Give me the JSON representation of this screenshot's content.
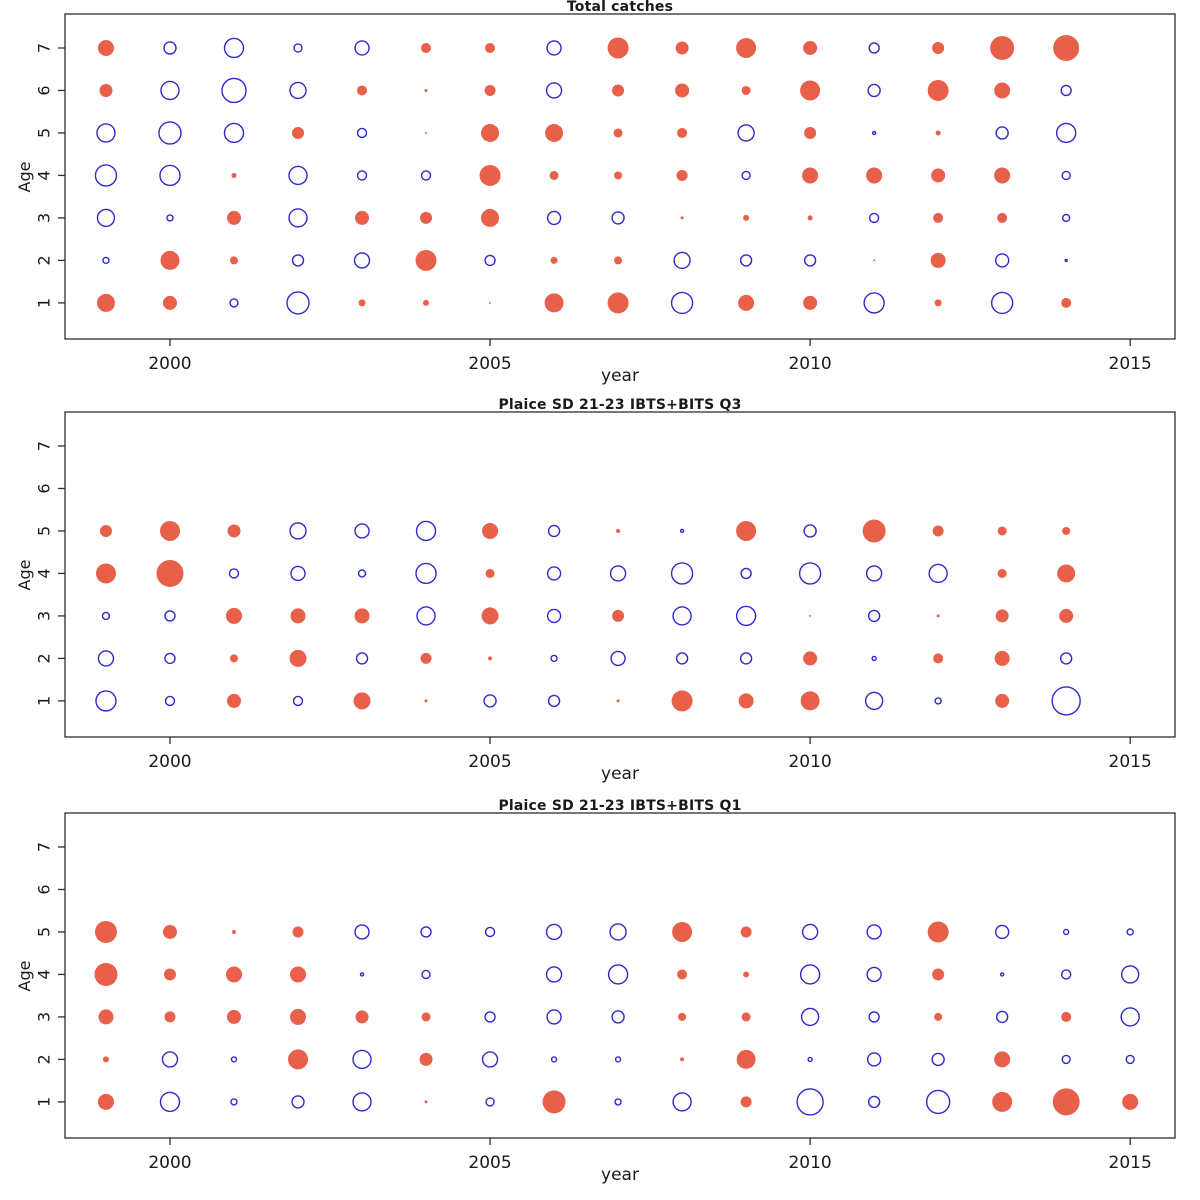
{
  "figure": {
    "background": "#ffffff",
    "axis_color": "#2e2e2e",
    "encoding_note": "bubble radius = magnitude; filled red = positive value, open blue circle = negative value"
  },
  "chart_data": [
    {
      "type": "bubble",
      "title": "Total catches",
      "xlabel": "year",
      "ylabel": "Age",
      "x_ticks": [
        2000,
        2005,
        2010,
        2015
      ],
      "y_ticks": [
        1,
        2,
        3,
        4,
        5,
        6,
        7
      ],
      "x_range": [
        1998.36,
        2015.7
      ],
      "y_range": [
        0.15,
        7.8
      ],
      "grid": false,
      "legend_position": "none",
      "colors": {
        "positive_fill": "#e8604a",
        "negative_stroke": "#2b2bcd"
      },
      "years": [
        1999,
        2000,
        2001,
        2002,
        2003,
        2004,
        2005,
        2006,
        2007,
        2008,
        2009,
        2010,
        2011,
        2012,
        2013,
        2014
      ],
      "series": [
        {
          "age": 7,
          "values": [
            8,
            -6,
            -9.5,
            -4,
            -7,
            5,
            5,
            -7,
            10.5,
            6.5,
            10,
            7,
            -5,
            6,
            12,
            13
          ]
        },
        {
          "age": 6,
          "values": [
            6.5,
            -9,
            -12,
            -8,
            5,
            1.5,
            5.5,
            -7.5,
            6,
            7,
            4.5,
            10,
            -6,
            10.5,
            8,
            -5
          ]
        },
        {
          "age": 5,
          "values": [
            -9,
            -11,
            -9.5,
            6,
            -4.5,
            1,
            9,
            9,
            4.5,
            5,
            -8,
            6,
            -1.5,
            2.5,
            -6,
            -9.5
          ]
        },
        {
          "age": 4,
          "values": [
            -10.5,
            -10,
            2.5,
            -9,
            -4.5,
            -4.5,
            10.5,
            4.5,
            4,
            5.5,
            -4,
            8,
            8,
            7,
            8,
            -4
          ]
        },
        {
          "age": 3,
          "values": [
            -8.5,
            -3,
            7,
            -9,
            7,
            6,
            9,
            -6.5,
            -6,
            1.5,
            3,
            2.5,
            -4.5,
            5,
            5,
            -3.5
          ]
        },
        {
          "age": 2,
          "values": [
            -3,
            9.5,
            4,
            -5.5,
            -7.5,
            10.5,
            -5,
            3.5,
            4,
            -8,
            -5.5,
            -5.5,
            1,
            7.5,
            -6.5,
            -1
          ]
        },
        {
          "age": 1,
          "values": [
            9,
            7,
            -4,
            -11,
            3.5,
            3,
            1,
            9.5,
            10.5,
            -10.5,
            8,
            7,
            -10,
            3.5,
            -10.5,
            5
          ]
        }
      ]
    },
    {
      "type": "bubble",
      "title": "Plaice SD 21-23 IBTS+BITS Q3",
      "xlabel": "year",
      "ylabel": "Age",
      "x_ticks": [
        2000,
        2005,
        2010,
        2015
      ],
      "y_ticks": [
        1,
        2,
        3,
        4,
        5,
        6,
        7
      ],
      "x_range": [
        1998.36,
        2015.7
      ],
      "y_range": [
        0.15,
        7.8
      ],
      "grid": false,
      "legend_position": "none",
      "colors": {
        "positive_fill": "#e8604a",
        "negative_stroke": "#2b2bcd"
      },
      "years": [
        1999,
        2000,
        2001,
        2002,
        2003,
        2004,
        2005,
        2006,
        2007,
        2008,
        2009,
        2010,
        2011,
        2012,
        2013,
        2014
      ],
      "series": [
        {
          "age": 5,
          "values": [
            6,
            10,
            6.5,
            -8,
            -7,
            -9.5,
            8,
            -5.5,
            2,
            -1.5,
            10,
            -6,
            11.5,
            5.5,
            4.5,
            4
          ]
        },
        {
          "age": 4,
          "values": [
            10,
            13.5,
            -4.5,
            -7,
            -3.5,
            -10,
            4.5,
            -6.5,
            -7.5,
            -10.5,
            -5,
            -10.5,
            -7.5,
            -9,
            4.5,
            9
          ]
        },
        {
          "age": 3,
          "values": [
            -3.5,
            -5,
            8,
            7.5,
            7.5,
            -9,
            8.5,
            -6.5,
            6,
            -9,
            -9.5,
            1,
            -5.5,
            1.5,
            6.5,
            7
          ]
        },
        {
          "age": 2,
          "values": [
            -7.5,
            -5,
            4,
            8.5,
            -5.5,
            5.5,
            2,
            -3,
            -7,
            -5.5,
            -5.5,
            7,
            -2,
            5,
            7.5,
            -5.5
          ]
        },
        {
          "age": 1,
          "values": [
            -10,
            -4.5,
            7,
            -4.5,
            8.5,
            1.5,
            -6,
            -5.5,
            1.5,
            10.5,
            7.5,
            9.5,
            -8.5,
            -3,
            7,
            -14
          ]
        }
      ]
    },
    {
      "type": "bubble",
      "title": "Plaice SD 21-23 IBTS+BITS Q1",
      "xlabel": "year",
      "ylabel": "Age",
      "x_ticks": [
        2000,
        2005,
        2010,
        2015
      ],
      "y_ticks": [
        1,
        2,
        3,
        4,
        5,
        6,
        7
      ],
      "x_range": [
        1998.36,
        2015.7
      ],
      "y_range": [
        0.15,
        7.8
      ],
      "grid": false,
      "legend_position": "none",
      "colors": {
        "positive_fill": "#e8604a",
        "negative_stroke": "#2b2bcd"
      },
      "years": [
        1999,
        2000,
        2001,
        2002,
        2003,
        2004,
        2005,
        2006,
        2007,
        2008,
        2009,
        2010,
        2011,
        2012,
        2013,
        2014,
        2015
      ],
      "series": [
        {
          "age": 5,
          "values": [
            11,
            7,
            2,
            5.5,
            -7,
            -5,
            -4.5,
            -7.5,
            -8,
            10,
            5.5,
            -7.5,
            -7,
            10.5,
            -6.5,
            -2.5,
            -3
          ]
        },
        {
          "age": 4,
          "values": [
            11.5,
            6,
            8,
            8,
            -1.5,
            -4,
            0,
            -7.5,
            -9.5,
            5,
            3,
            -9.5,
            -7,
            6,
            -1.5,
            -4.5,
            -8.5
          ]
        },
        {
          "age": 3,
          "values": [
            7.5,
            5.5,
            7,
            8,
            6.5,
            4.5,
            -5,
            -7,
            -6,
            4,
            4.5,
            -8.5,
            -5,
            4,
            -5.5,
            5,
            -9
          ]
        },
        {
          "age": 2,
          "values": [
            3,
            -7.5,
            -2.5,
            10,
            -9,
            6.5,
            -7.5,
            -2.5,
            -2.5,
            2,
            9.5,
            -2,
            -6.5,
            -6,
            8,
            -4,
            -4
          ]
        },
        {
          "age": 1,
          "values": [
            8,
            -9.5,
            -3,
            -6,
            -9,
            1.5,
            -4,
            11.5,
            -3,
            -9,
            5.5,
            -13,
            -5.5,
            -11.5,
            10,
            13.5,
            8
          ]
        }
      ]
    }
  ]
}
